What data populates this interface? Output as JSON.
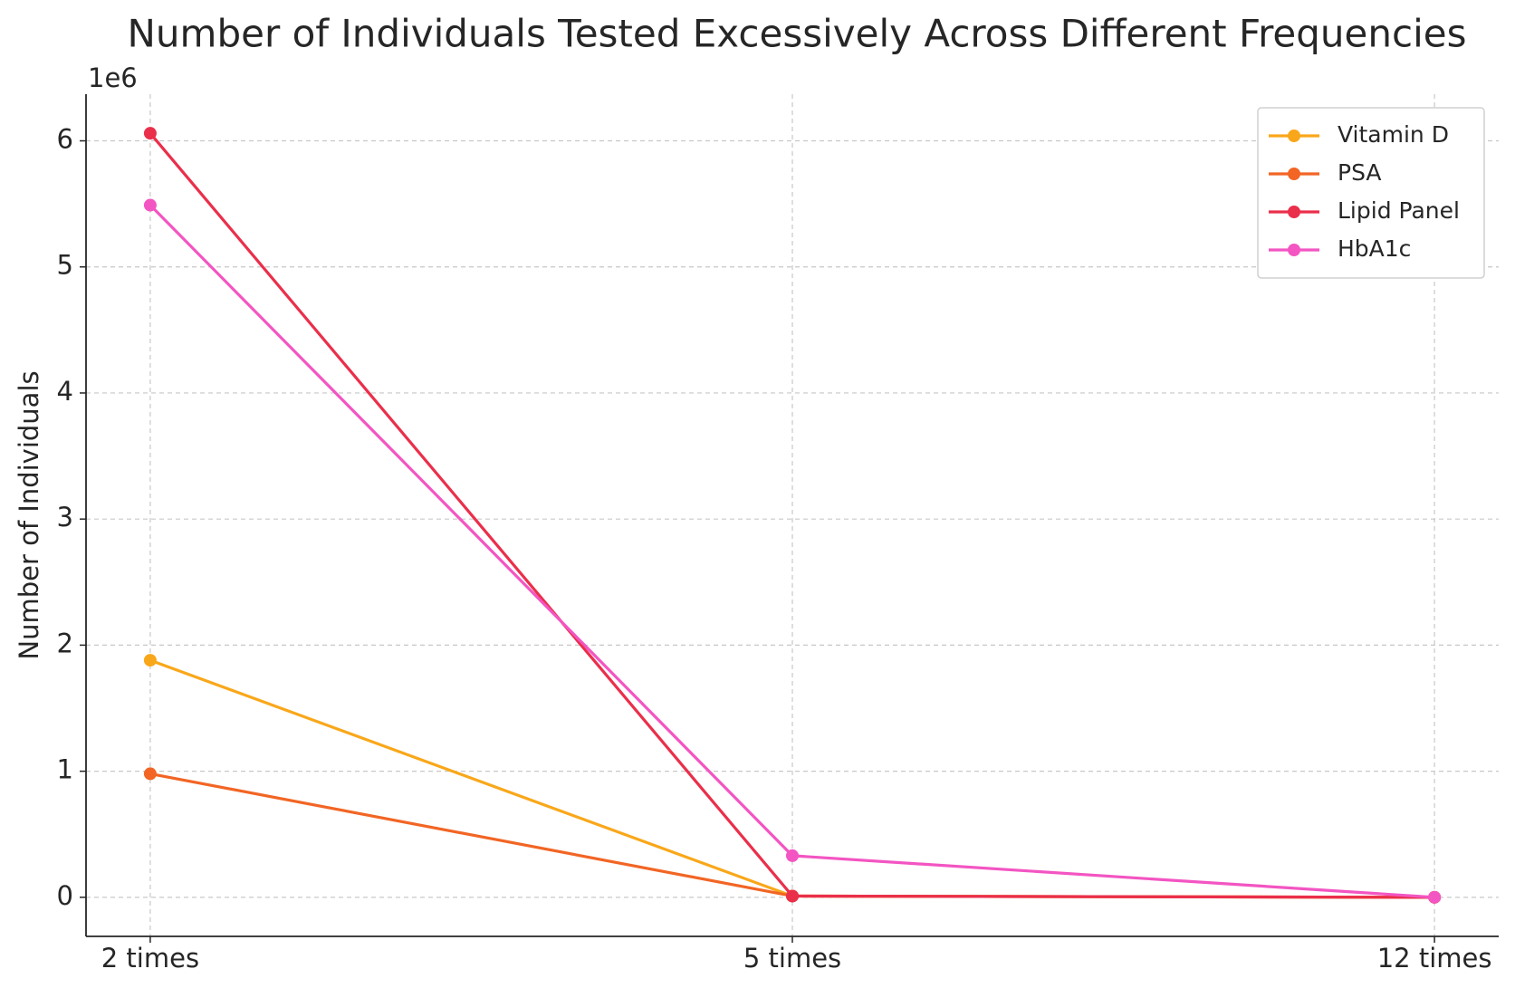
{
  "chart_data": {
    "type": "line",
    "title": "Number of Individuals Tested Excessively Across Different Frequencies",
    "y_label": "Number of Individuals",
    "y_offset_label": "1e6",
    "categories": [
      "2 times",
      "5 times",
      "12 times"
    ],
    "series": [
      {
        "name": "Vitamin D",
        "color": "#f9a71a",
        "values": [
          1880000,
          10000,
          0
        ]
      },
      {
        "name": "PSA",
        "color": "#f26524",
        "values": [
          980000,
          10000,
          0
        ]
      },
      {
        "name": "Lipid Panel",
        "color": "#ea2f4b",
        "values": [
          6060000,
          10000,
          0
        ]
      },
      {
        "name": "HbA1c",
        "color": "#f355c2",
        "values": [
          5490000,
          330000,
          0
        ]
      }
    ],
    "ylim": [
      -310000,
      6370000
    ],
    "yticks": [
      {
        "value": 0,
        "label": "0"
      },
      {
        "value": 1000000,
        "label": "1"
      },
      {
        "value": 2000000,
        "label": "2"
      },
      {
        "value": 3000000,
        "label": "3"
      },
      {
        "value": 4000000,
        "label": "4"
      },
      {
        "value": 5000000,
        "label": "5"
      },
      {
        "value": 6000000,
        "label": "6"
      }
    ],
    "grid": true,
    "legend": "upper right"
  }
}
